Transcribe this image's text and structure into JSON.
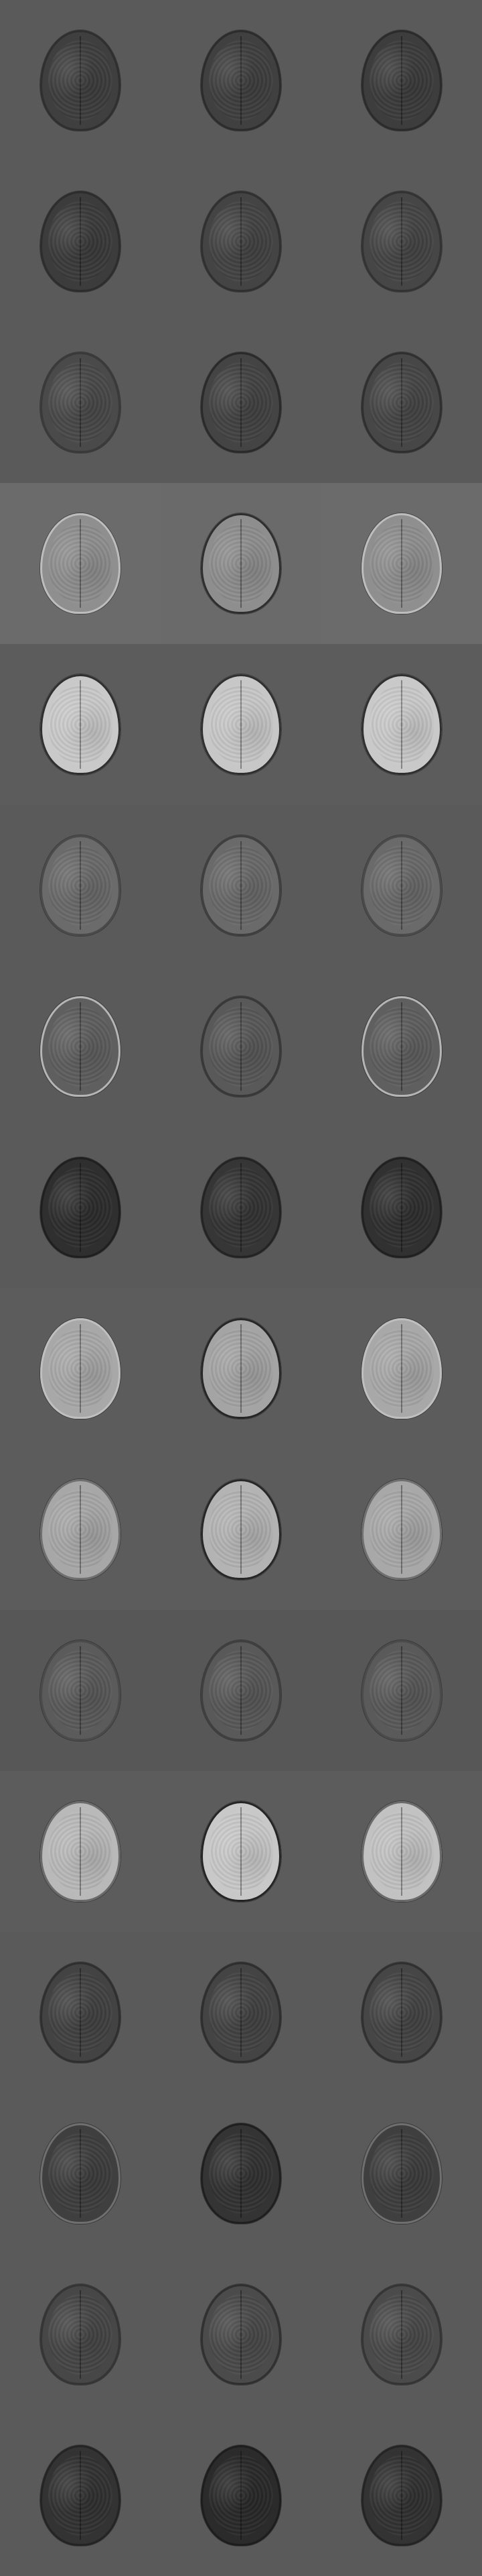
{
  "grid": {
    "rows": 16,
    "cols": 3,
    "cells": [
      [
        {
          "bg": "#5a5a5a",
          "fg": "#3f3f3f",
          "edge": "#2f2f2f"
        },
        {
          "bg": "#5a5a5a",
          "fg": "#404040",
          "edge": "#2c2c2c"
        },
        {
          "bg": "#5a5a5a",
          "fg": "#3d3d3d",
          "edge": "#2b2b2b"
        }
      ],
      [
        {
          "bg": "#5a5a5a",
          "fg": "#3c3c3c",
          "edge": "#2d2d2d"
        },
        {
          "bg": "#5a5a5a",
          "fg": "#444444",
          "edge": "#303030"
        },
        {
          "bg": "#5a5a5a",
          "fg": "#464646",
          "edge": "#333333"
        }
      ],
      [
        {
          "bg": "#5a5a5a",
          "fg": "#4a4a4a",
          "edge": "#3a3a3a"
        },
        {
          "bg": "#5a5a5a",
          "fg": "#444444",
          "edge": "#2a2a2a"
        },
        {
          "bg": "#5a5a5a",
          "fg": "#474747",
          "edge": "#2f2f2f"
        }
      ],
      [
        {
          "bg": "#6b6b6b",
          "fg": "#8f8f8f",
          "edge": "#bdbdbd"
        },
        {
          "bg": "#6a6a6a",
          "fg": "#8e8e8e",
          "edge": "#2e2e2e"
        },
        {
          "bg": "#6b6b6b",
          "fg": "#8f8f8f",
          "edge": "#bdbdbd"
        }
      ],
      [
        {
          "bg": "#5c5c5c",
          "fg": "#c9c9c9",
          "edge": "#2f2f2f"
        },
        {
          "bg": "#5c5c5c",
          "fg": "#c7c7c7",
          "edge": "#2f2f2f"
        },
        {
          "bg": "#5c5c5c",
          "fg": "#c9c9c9",
          "edge": "#2f2f2f"
        }
      ],
      [
        {
          "bg": "#5a5a5a",
          "fg": "#6b6b6b",
          "edge": "#4a4a4a"
        },
        {
          "bg": "#5a5a5a",
          "fg": "#6a6a6a",
          "edge": "#3f3f3f"
        },
        {
          "bg": "#5a5a5a",
          "fg": "#6a6a6a",
          "edge": "#4a4a4a"
        }
      ],
      [
        {
          "bg": "#5a5a5a",
          "fg": "#5f5f5f",
          "edge": "#b5b5b5"
        },
        {
          "bg": "#5a5a5a",
          "fg": "#595959",
          "edge": "#383838"
        },
        {
          "bg": "#5a5a5a",
          "fg": "#5f5f5f",
          "edge": "#b5b5b5"
        }
      ],
      [
        {
          "bg": "#5a5a5a",
          "fg": "#2f2f2f",
          "edge": "#1f1f1f"
        },
        {
          "bg": "#5a5a5a",
          "fg": "#363636",
          "edge": "#232323"
        },
        {
          "bg": "#5a5a5a",
          "fg": "#313131",
          "edge": "#202020"
        }
      ],
      [
        {
          "bg": "#5c5c5c",
          "fg": "#a8a8a8",
          "edge": "#bfbfbf"
        },
        {
          "bg": "#5c5c5c",
          "fg": "#a4a4a4",
          "edge": "#262626"
        },
        {
          "bg": "#5c5c5c",
          "fg": "#a8a8a8",
          "edge": "#bfbfbf"
        }
      ],
      [
        {
          "bg": "#5c5c5c",
          "fg": "#a7a7a7",
          "edge": "#6f6f6f"
        },
        {
          "bg": "#5c5c5c",
          "fg": "#b3b3b3",
          "edge": "#262626"
        },
        {
          "bg": "#5c5c5c",
          "fg": "#a8a8a8",
          "edge": "#6f6f6f"
        }
      ],
      [
        {
          "bg": "#575757",
          "fg": "#5b5b5b",
          "edge": "#4b4b4b"
        },
        {
          "bg": "#575757",
          "fg": "#595959",
          "edge": "#3f3f3f"
        },
        {
          "bg": "#575757",
          "fg": "#5a5a5a",
          "edge": "#4b4b4b"
        }
      ],
      [
        {
          "bg": "#5c5c5c",
          "fg": "#b9b9b9",
          "edge": "#6a6a6a"
        },
        {
          "bg": "#5c5c5c",
          "fg": "#c8c8c8",
          "edge": "#242424"
        },
        {
          "bg": "#5c5c5c",
          "fg": "#c2c2c2",
          "edge": "#6a6a6a"
        }
      ],
      [
        {
          "bg": "#5a5a5a",
          "fg": "#434343",
          "edge": "#2f2f2f"
        },
        {
          "bg": "#5a5a5a",
          "fg": "#444444",
          "edge": "#2e2e2e"
        },
        {
          "bg": "#5a5a5a",
          "fg": "#464646",
          "edge": "#303030"
        }
      ],
      [
        {
          "bg": "#5a5a5a",
          "fg": "#3f3f3f",
          "edge": "#6f6f6f"
        },
        {
          "bg": "#5a5a5a",
          "fg": "#343434",
          "edge": "#1f1f1f"
        },
        {
          "bg": "#5a5a5a",
          "fg": "#3f3f3f",
          "edge": "#6f6f6f"
        }
      ],
      [
        {
          "bg": "#5a5a5a",
          "fg": "#474747",
          "edge": "#353535"
        },
        {
          "bg": "#5a5a5a",
          "fg": "#4b4b4b",
          "edge": "#303030"
        },
        {
          "bg": "#5a5a5a",
          "fg": "#4b4b4b",
          "edge": "#353535"
        }
      ],
      [
        {
          "bg": "#5a5a5a",
          "fg": "#333333",
          "edge": "#242424"
        },
        {
          "bg": "#5a5a5a",
          "fg": "#2b2b2b",
          "edge": "#1d1d1d"
        },
        {
          "bg": "#5a5a5a",
          "fg": "#333333",
          "edge": "#242424"
        }
      ]
    ]
  }
}
